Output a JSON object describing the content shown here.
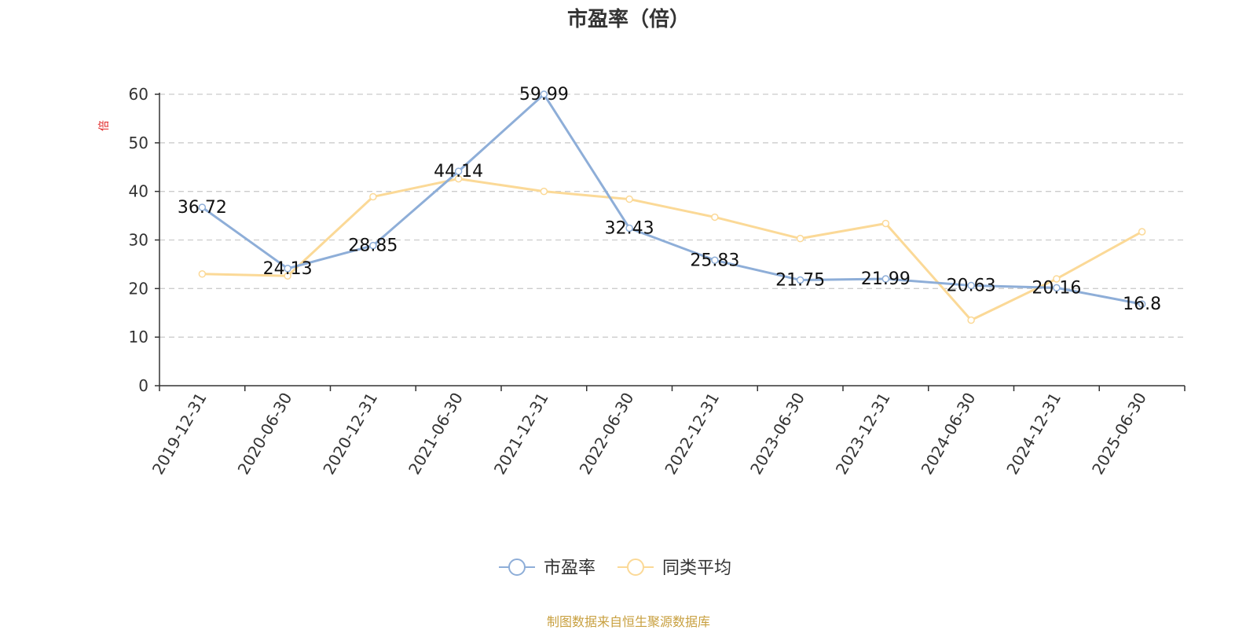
{
  "chart_data": {
    "type": "line",
    "title": "市盈率（倍）",
    "ylabel": "倍",
    "categories": [
      "2019-12-31",
      "2020-06-30",
      "2020-12-31",
      "2021-06-30",
      "2021-12-31",
      "2022-06-30",
      "2022-12-31",
      "2023-06-30",
      "2023-12-31",
      "2024-06-30",
      "2024-12-31",
      "2025-06-30"
    ],
    "y_ticks": [
      "0",
      "10",
      "20",
      "30",
      "40",
      "50",
      "60"
    ],
    "ylim": [
      0,
      60
    ],
    "grid": true,
    "legend_position": "bottom",
    "series": [
      {
        "name": "市盈率",
        "color": "#8eaed8",
        "values": [
          36.72,
          24.13,
          28.85,
          44.14,
          59.99,
          32.43,
          25.83,
          21.75,
          21.99,
          20.63,
          20.16,
          16.8
        ],
        "labels": [
          "36.72",
          "24.13",
          "28.85",
          "44.14",
          "59.99",
          "32.43",
          "25.83",
          "21.75",
          "21.99",
          "20.63",
          "20.16",
          "16.8"
        ]
      },
      {
        "name": "同类平均",
        "color": "#fbd997",
        "values": [
          23.0,
          22.6,
          38.9,
          42.6,
          40.0,
          38.4,
          34.7,
          30.3,
          33.4,
          13.5,
          22.0,
          31.7
        ]
      }
    ]
  },
  "source_text": "制图数据来自恒生聚源数据库"
}
